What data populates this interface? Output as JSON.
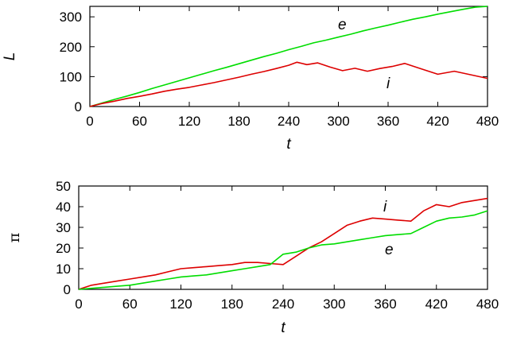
{
  "chart_data": [
    {
      "type": "line",
      "xlabel": "t",
      "ylabel": "L",
      "xlim": [
        0,
        480
      ],
      "ylim": [
        0,
        335
      ],
      "xticks": [
        "0",
        "60",
        "120",
        "180",
        "240",
        "300",
        "360",
        "420",
        "480"
      ],
      "yticks": [
        "0",
        "100",
        "200",
        "300"
      ],
      "grid": false,
      "series": [
        {
          "name": "e",
          "color": "#00dd00",
          "x": [
            0,
            15,
            30,
            45,
            60,
            75,
            90,
            105,
            120,
            135,
            150,
            165,
            180,
            195,
            210,
            225,
            240,
            255,
            270,
            285,
            300,
            315,
            330,
            345,
            360,
            375,
            390,
            405,
            420,
            435,
            450,
            465,
            480
          ],
          "y": [
            0,
            12,
            24,
            35,
            47,
            60,
            72,
            84,
            96,
            108,
            120,
            131,
            143,
            155,
            167,
            178,
            190,
            201,
            213,
            222,
            232,
            242,
            253,
            263,
            272,
            282,
            292,
            300,
            309,
            317,
            325,
            332,
            335
          ]
        },
        {
          "name": "i",
          "color": "#dd0000",
          "x": [
            0,
            15,
            30,
            45,
            60,
            75,
            90,
            105,
            120,
            135,
            150,
            165,
            180,
            195,
            210,
            225,
            240,
            250,
            262,
            275,
            290,
            305,
            320,
            335,
            350,
            365,
            380,
            400,
            420,
            440,
            460,
            480
          ],
          "y": [
            0,
            10,
            18,
            27,
            34,
            42,
            51,
            58,
            64,
            72,
            80,
            89,
            98,
            108,
            117,
            127,
            138,
            148,
            140,
            146,
            132,
            120,
            128,
            118,
            127,
            134,
            144,
            126,
            108,
            118,
            106,
            94
          ]
        }
      ]
    },
    {
      "type": "line",
      "xlabel": "t",
      "ylabel": "π",
      "xlim": [
        0,
        480
      ],
      "ylim": [
        0,
        50
      ],
      "xticks": [
        "0",
        "60",
        "120",
        "180",
        "240",
        "300",
        "360",
        "420",
        "480"
      ],
      "yticks": [
        "0",
        "10",
        "20",
        "30",
        "40",
        "50"
      ],
      "grid": false,
      "series": [
        {
          "name": "i",
          "color": "#dd0000",
          "x": [
            0,
            15,
            30,
            45,
            60,
            75,
            90,
            105,
            120,
            135,
            150,
            165,
            180,
            195,
            210,
            225,
            240,
            255,
            270,
            285,
            300,
            315,
            330,
            345,
            360,
            375,
            390,
            405,
            420,
            435,
            450,
            465,
            480
          ],
          "y": [
            0,
            2,
            3,
            4,
            5,
            6,
            7,
            8.5,
            10,
            10.5,
            11,
            11.5,
            12,
            13,
            13,
            12.5,
            12,
            16,
            20,
            23,
            27,
            31,
            33,
            34.5,
            34,
            33.5,
            33,
            38,
            41,
            40,
            42,
            43,
            44
          ]
        },
        {
          "name": "e",
          "color": "#00dd00",
          "x": [
            0,
            15,
            30,
            45,
            60,
            75,
            90,
            105,
            120,
            135,
            150,
            165,
            180,
            195,
            210,
            225,
            240,
            255,
            270,
            285,
            300,
            315,
            330,
            345,
            360,
            375,
            390,
            405,
            420,
            435,
            450,
            465,
            480
          ],
          "y": [
            0,
            0.5,
            1,
            1.5,
            2,
            3,
            4,
            5,
            6,
            6.5,
            7,
            8,
            9,
            10,
            11,
            12,
            17,
            18,
            20,
            21.5,
            22,
            23,
            24,
            25,
            26,
            26.5,
            27,
            30,
            33,
            34.5,
            35,
            36,
            38
          ]
        }
      ]
    }
  ]
}
